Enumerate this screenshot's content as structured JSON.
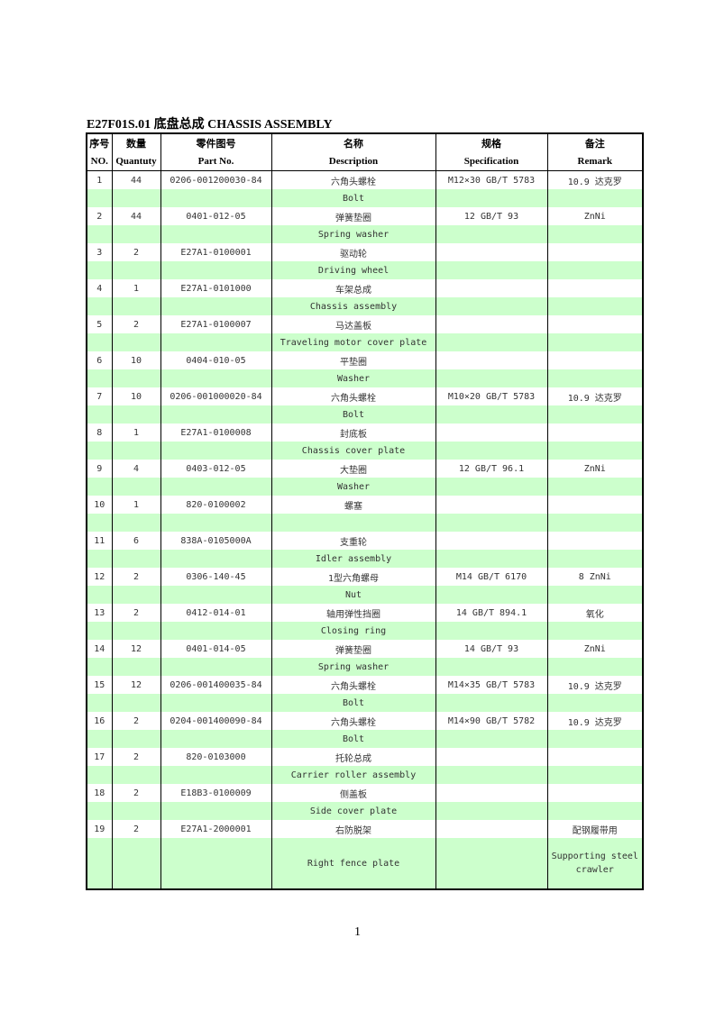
{
  "title": "E27F01S.01 底盘总成 CHASSIS ASSEMBLY",
  "headers_cn": [
    "序号",
    "数量",
    "零件图号",
    "名称",
    "规格",
    "备注"
  ],
  "headers_en": [
    "NO.",
    "Quantuty",
    "Part No.",
    "Description",
    "Specification",
    "Remark"
  ],
  "colors": {
    "alt_row": "#ccffcc"
  },
  "rows": [
    {
      "no": "1",
      "qty": "44",
      "part": "0206-001200030-84",
      "cn": "六角头螺栓",
      "en": "Bolt",
      "spec": "M12×30 GB/T 5783",
      "remark": "10.9 达克罗",
      "remark_en": ""
    },
    {
      "no": "2",
      "qty": "44",
      "part": "0401-012-05",
      "cn": "弹簧垫圈",
      "en": "Spring washer",
      "spec": "12 GB/T 93",
      "remark": "ZnNi",
      "remark_en": ""
    },
    {
      "no": "3",
      "qty": "2",
      "part": "E27A1-0100001",
      "cn": "驱动轮",
      "en": "Driving wheel",
      "spec": "",
      "remark": "",
      "remark_en": ""
    },
    {
      "no": "4",
      "qty": "1",
      "part": "E27A1-0101000",
      "cn": "车架总成",
      "en": "Chassis assembly",
      "spec": "",
      "remark": "",
      "remark_en": ""
    },
    {
      "no": "5",
      "qty": "2",
      "part": "E27A1-0100007",
      "cn": "马达盖板",
      "en": "Traveling motor cover plate",
      "spec": "",
      "remark": "",
      "remark_en": ""
    },
    {
      "no": "6",
      "qty": "10",
      "part": "0404-010-05",
      "cn": "平垫圈",
      "en": "Washer",
      "spec": "",
      "remark": "",
      "remark_en": ""
    },
    {
      "no": "7",
      "qty": "10",
      "part": "0206-001000020-84",
      "cn": "六角头螺栓",
      "en": "Bolt",
      "spec": "M10×20 GB/T 5783",
      "remark": "10.9 达克罗",
      "remark_en": ""
    },
    {
      "no": "8",
      "qty": "1",
      "part": "E27A1-0100008",
      "cn": "封底板",
      "en": "Chassis cover plate",
      "spec": "",
      "remark": "",
      "remark_en": ""
    },
    {
      "no": "9",
      "qty": "4",
      "part": "0403-012-05",
      "cn": "大垫圈",
      "en": "Washer",
      "spec": "12 GB/T 96.1",
      "remark": "ZnNi",
      "remark_en": ""
    },
    {
      "no": "10",
      "qty": "1",
      "part": "820-0100002",
      "cn": "螺塞",
      "en": "",
      "spec": "",
      "remark": "",
      "remark_en": ""
    },
    {
      "no": "11",
      "qty": "6",
      "part": "838A-0105000A",
      "cn": "支重轮",
      "en": "Idler assembly",
      "spec": "",
      "remark": "",
      "remark_en": ""
    },
    {
      "no": "12",
      "qty": "2",
      "part": "0306-140-45",
      "cn": "1型六角螺母",
      "en": "Nut",
      "spec": "M14 GB/T 6170",
      "remark": "8 ZnNi",
      "remark_en": ""
    },
    {
      "no": "13",
      "qty": "2",
      "part": "0412-014-01",
      "cn": "轴用弹性挡圈",
      "en": "Closing ring",
      "spec": "14 GB/T 894.1",
      "remark": "氧化",
      "remark_en": ""
    },
    {
      "no": "14",
      "qty": "12",
      "part": "0401-014-05",
      "cn": "弹簧垫圈",
      "en": "Spring washer",
      "spec": "14 GB/T 93",
      "remark": "ZnNi",
      "remark_en": ""
    },
    {
      "no": "15",
      "qty": "12",
      "part": "0206-001400035-84",
      "cn": "六角头螺栓",
      "en": "Bolt",
      "spec": "M14×35 GB/T 5783",
      "remark": "10.9 达克罗",
      "remark_en": ""
    },
    {
      "no": "16",
      "qty": "2",
      "part": "0204-001400090-84",
      "cn": "六角头螺栓",
      "en": "Bolt",
      "spec": "M14×90 GB/T 5782",
      "remark": "10.9 达克罗",
      "remark_en": ""
    },
    {
      "no": "17",
      "qty": "2",
      "part": "820-0103000",
      "cn": "托轮总成",
      "en": "Carrier roller assembly",
      "spec": "",
      "remark": "",
      "remark_en": ""
    },
    {
      "no": "18",
      "qty": "2",
      "part": "E18B3-0100009",
      "cn": "侧盖板",
      "en": "Side cover plate",
      "spec": "",
      "remark": "",
      "remark_en": ""
    },
    {
      "no": "19",
      "qty": "2",
      "part": "E27A1-2000001",
      "cn": "右防脱架",
      "en": "Right fence plate",
      "spec": "",
      "remark": "配钢履带用",
      "remark_en": "Supporting steel crawler"
    }
  ],
  "page_number": "1"
}
